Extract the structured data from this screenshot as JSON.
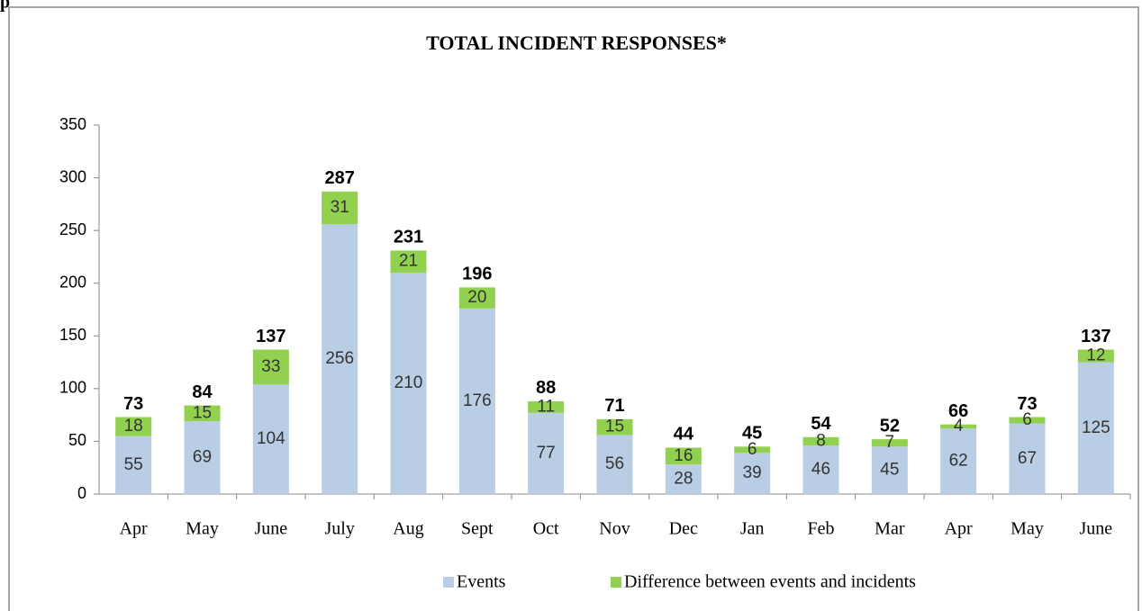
{
  "heading": "p",
  "chart_data": {
    "type": "stacked_bar",
    "title": "TOTAL INCIDENT RESPONSES*",
    "categories": [
      "Apr",
      "May",
      "June",
      "July",
      "Aug",
      "Sept",
      "Oct",
      "Nov",
      "Dec",
      "Jan",
      "Feb",
      "Mar",
      "Apr",
      "May",
      "June"
    ],
    "series": [
      {
        "name": "Events",
        "color": "#b9cde5",
        "values": [
          55,
          69,
          104,
          256,
          210,
          176,
          77,
          56,
          28,
          39,
          46,
          45,
          62,
          67,
          125
        ]
      },
      {
        "name": "Difference between events and incidents",
        "color": "#92d050",
        "values": [
          18,
          15,
          33,
          31,
          21,
          20,
          11,
          15,
          16,
          6,
          8,
          7,
          4,
          6,
          12
        ]
      }
    ],
    "totals": [
      73,
      84,
      137,
      287,
      231,
      196,
      88,
      71,
      44,
      45,
      54,
      52,
      66,
      73,
      137
    ],
    "ylim": [
      0,
      350
    ],
    "yticks": [
      0,
      50,
      100,
      150,
      200,
      250,
      300,
      350
    ],
    "legend": "bottom"
  }
}
